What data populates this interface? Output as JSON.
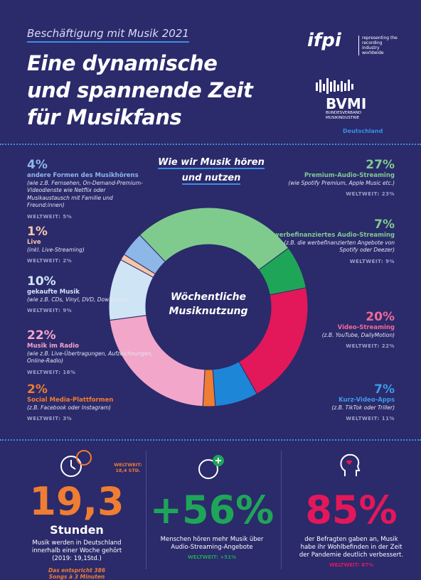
{
  "header": {
    "kicker": "Beschäftigung mit Musik 2021",
    "title_lines": [
      "Eine dynamische",
      "und spannende Zeit",
      "für Musikfans"
    ],
    "ifpi": "ifpi",
    "ifpi_tagline": "representing the recording industry worldwide",
    "bvmi": "BVMI",
    "bvmi_sub": "BUNDESVERBAND MUSIKINDUSTRIE",
    "country": "Deutschland"
  },
  "chart_data": {
    "type": "pie",
    "donut": true,
    "title": "Wie wir Musik hören und nutzen",
    "center_label": "Wöchentliche Musiknutzung",
    "categories": [
      "Premium-Audio-Streaming",
      "werbefinanziertes Audio-Streaming",
      "Video-Streaming",
      "Kurz-Video-Apps",
      "Social Media-Plattformen",
      "Musik im Radio",
      "gekaufte Musik",
      "Live",
      "andere Formen des Musikhörens"
    ],
    "values": [
      27,
      7,
      20,
      7,
      2,
      22,
      10,
      1,
      4
    ],
    "value_labels": [
      "27%",
      "7%",
      "20%",
      "7%",
      "2%",
      "22%",
      "10%",
      "1%",
      "4%"
    ],
    "colors": [
      "#7fcb8e",
      "#1fa558",
      "#e2185a",
      "#1d86d6",
      "#ef7d32",
      "#f2a6c9",
      "#cfe5f6",
      "#f6c6a8",
      "#8db7e6"
    ],
    "details": [
      "(wie Spotify Premium, Apple Music etc.)",
      "(z.B. die werbefinanzierten Angebote von Spotify oder Deezer)",
      "(z.B. YouTube, DailyMotion)",
      "(z.B. TikTok oder Triller)",
      "(z.B. Facebook oder Instagram)",
      "(wie z.B. Live-Übertragungen, Aufzeichnungen, Online-Radio)",
      "(wie z.B. CDs, Vinyl, DVD, Downloads)",
      "(inkl. Live-Streaming)",
      "(wie z.B. Fernsehen, On-Demand-Premium-Videodienste wie Netflix oder Musikaustausch mit Familie und Freund:innen)"
    ],
    "global": [
      "WELTWEIT: 23%",
      "WELTWEIT: 9%",
      "WELTWEIT: 22%",
      "WELTWEIT: 11%",
      "WELTWEIT: 3%",
      "WELTWEIT: 16%",
      "WELTWEIT: 9%",
      "WELTWEIT: 2%",
      "WELTWEIT: 5%"
    ]
  },
  "stats": [
    {
      "global": "WELTWEIT: 18,4 STD.",
      "figure": "19,3",
      "unit": "Stunden",
      "text": "Musik werden in Deutschland innerhalb einer Woche gehört (2019: 19,1Std.)",
      "note": "Das entspricht 386 Songs à 3 Minuten"
    },
    {
      "figure": "+56%",
      "text": "Menschen hören mehr Musik über Audio-Streaming-Angebote",
      "global": "WELTWEIT: +51%"
    },
    {
      "figure": "85%",
      "text": "der Befragten gaben an, Musik habe ihr Wohlbefinden in der Zeit der Pandemie deutlich verbessert.",
      "global": "WELTWEIT: 87%"
    }
  ]
}
